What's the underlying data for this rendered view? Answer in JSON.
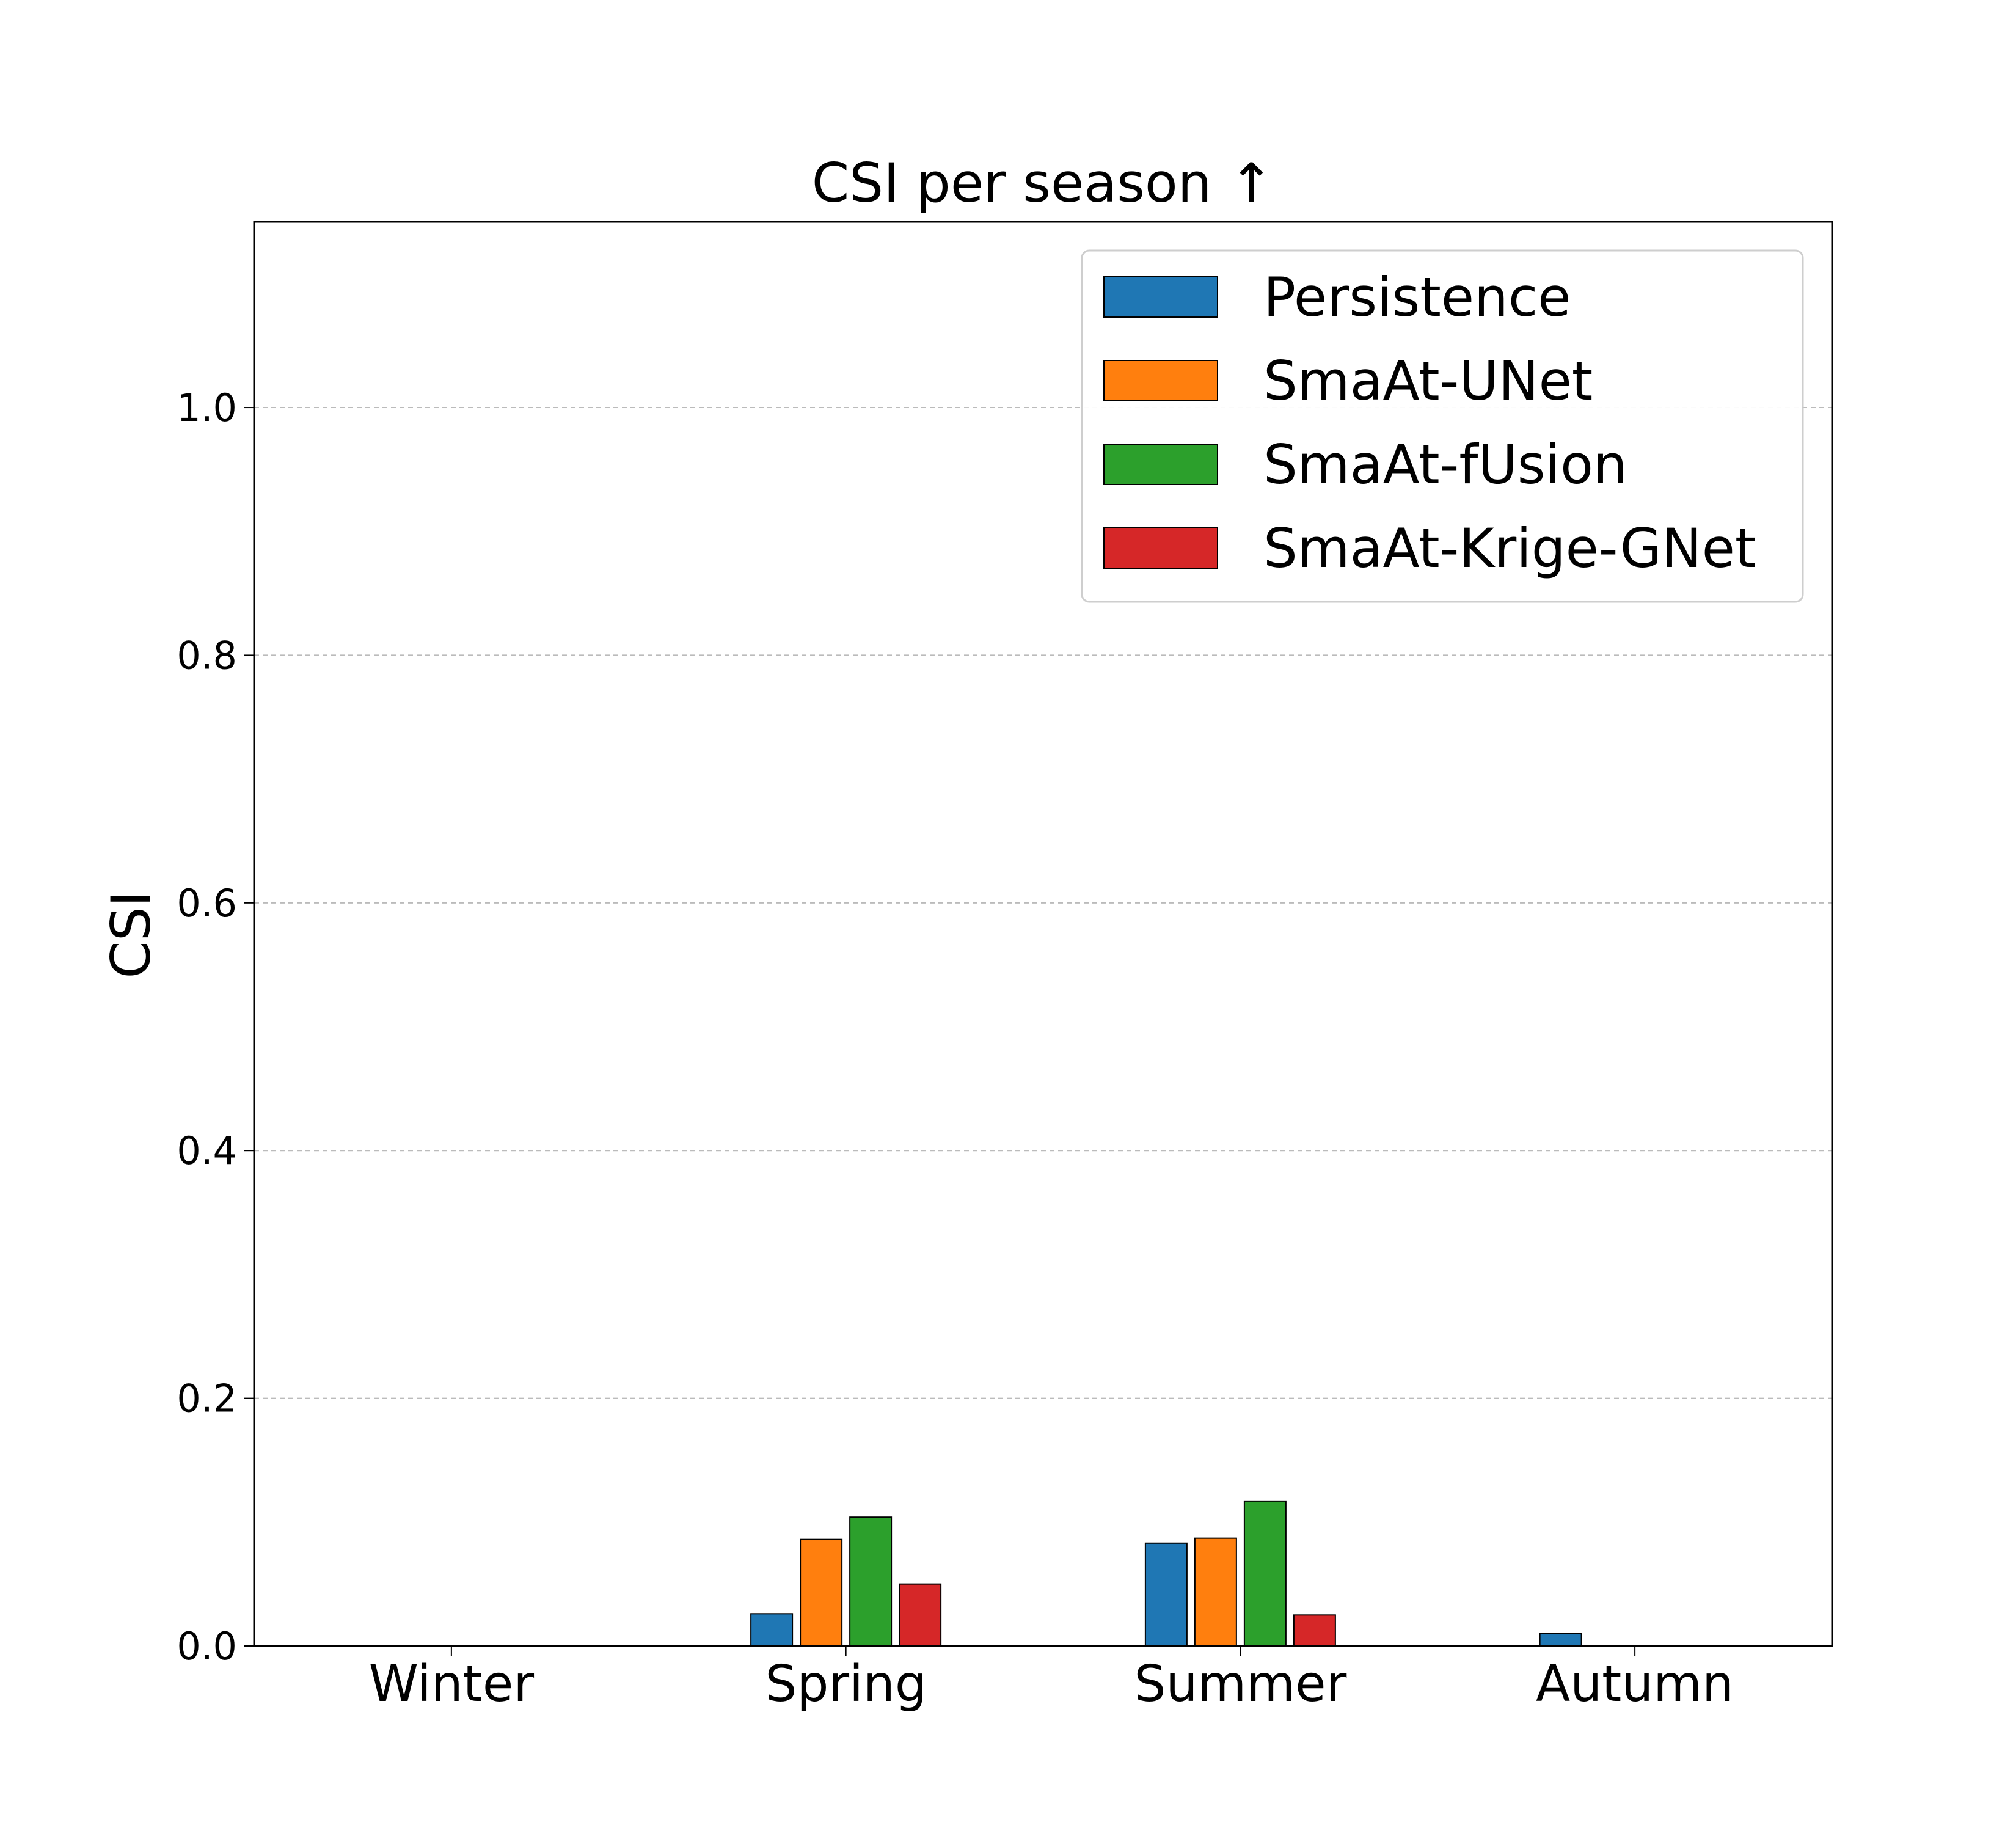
{
  "chart_data": {
    "type": "bar",
    "title": "CSI per season ↑",
    "xlabel": "",
    "ylabel": "CSI",
    "ylim": [
      0,
      1.15
    ],
    "yticks": [
      0.0,
      0.2,
      0.4,
      0.6,
      0.8,
      1.0
    ],
    "ytick_labels": [
      "0.0",
      "0.2",
      "0.4",
      "0.6",
      "0.8",
      "1.0"
    ],
    "grid": "horizontal dashed",
    "legend_position": "top-right",
    "categories": [
      "Winter",
      "Spring",
      "Summer",
      "Autumn"
    ],
    "series": [
      {
        "name": "Persistence",
        "color": "#1f77b4",
        "values": [
          0.0,
          0.026,
          0.083,
          0.01
        ]
      },
      {
        "name": "SmaAt-UNet",
        "color": "#ff7f0e",
        "values": [
          0.0,
          0.086,
          0.087,
          0.0
        ]
      },
      {
        "name": "SmaAt-fUsion",
        "color": "#2ca02c",
        "values": [
          0.0,
          0.104,
          0.117,
          0.0
        ]
      },
      {
        "name": "SmaAt-Krige-GNet",
        "color": "#d62728",
        "values": [
          0.0,
          0.05,
          0.025,
          0.0
        ]
      }
    ]
  }
}
